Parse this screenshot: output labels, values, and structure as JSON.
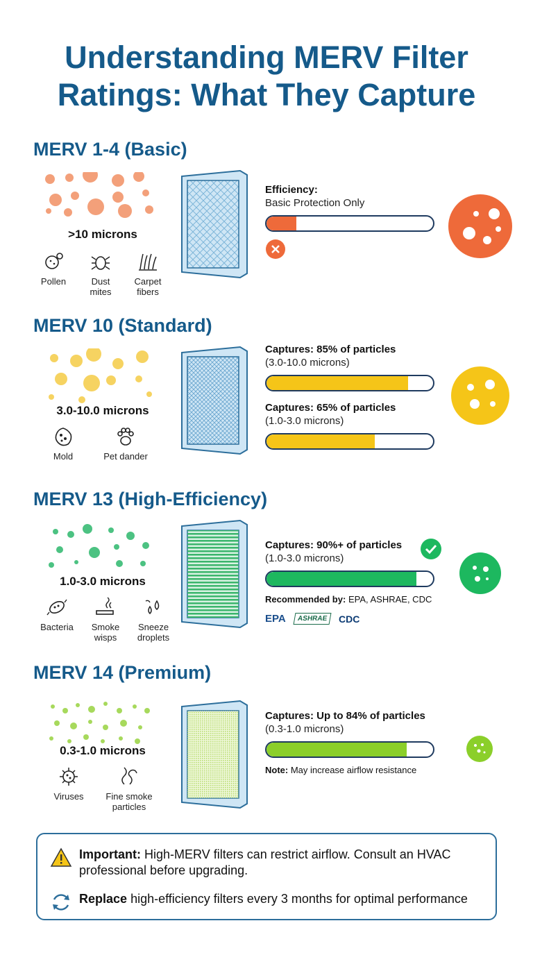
{
  "title_line1": "Understanding MERV Filter",
  "title_line2": "Ratings: What They Capture",
  "sections": [
    {
      "heading": "MERV 1-4 (Basic)",
      "micron": ">10 microns",
      "color": "#ee6a3a",
      "items": [
        "Pollen",
        "Dust mites",
        "Carpet fibers"
      ],
      "stats": [
        {
          "label": "Efficiency:",
          "sub": "Basic Protection Only",
          "fill": 0.18
        }
      ]
    },
    {
      "heading": "MERV 10 (Standard)",
      "micron": "3.0-10.0 microns",
      "color": "#f5c518",
      "items": [
        "Mold",
        "Pet dander"
      ],
      "stats": [
        {
          "label": "Captures: 85% of particles",
          "sub": "(3.0-10.0 microns)",
          "fill": 0.85
        },
        {
          "label": "Captures: 65% of particles",
          "sub": "(1.0-3.0 microns)",
          "fill": 0.65
        }
      ]
    },
    {
      "heading": "MERV 13 (High-Efficiency)",
      "micron": "1.0-3.0 microns",
      "color": "#1db85f",
      "items": [
        "Bacteria",
        "Smoke wisps",
        "Sneeze droplets"
      ],
      "stats": [
        {
          "label": "Captures: 90%+ of particles",
          "sub": "(1.0-3.0 microns)",
          "fill": 0.9
        }
      ],
      "recommended_label": "Recommended by:",
      "recommended_value": "EPA, ASHRAE, CDC",
      "logos": [
        "EPA",
        "ASHRAE",
        "CDC"
      ]
    },
    {
      "heading": "MERV 14 (Premium)",
      "micron": "0.3-1.0 microns",
      "color": "#8bcf2a",
      "items": [
        "Viruses",
        "Fine smoke particles"
      ],
      "stats": [
        {
          "label": "Captures: Up to 84% of particles",
          "sub": "(0.3-1.0 microns)",
          "fill": 0.84
        }
      ],
      "note_label": "Note:",
      "note_value": "May increase airflow resistance"
    }
  ],
  "notice": {
    "important_label": "Important:",
    "important_text": "High-MERV filters can restrict airflow. Consult an HVAC professional before upgrading.",
    "replace_label": "Replace",
    "replace_text": "high-efficiency filters every 3 months for optimal performance"
  }
}
